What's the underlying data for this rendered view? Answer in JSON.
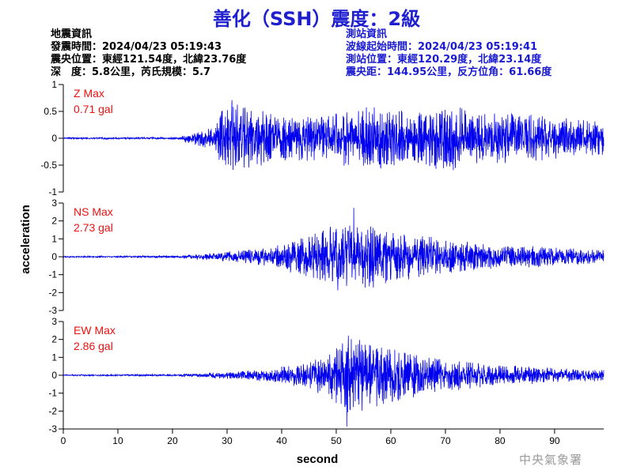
{
  "title": "善化（SSH）震度：2級",
  "quake_info": {
    "heading": "地震資訊",
    "time": "發震時間：2024/04/23 05:19:43",
    "epicenter": "震央位置：東經121.54度，北緯23.76度",
    "depth_magnitude": "深　度：5.8公里，芮氏規模：5.7"
  },
  "station_info": {
    "heading": "測站資訊",
    "wave_start": "波線起始時間：2024/04/23 05:19:41",
    "location": "測站位置：東經120.29度，北緯23.14度",
    "distance": "震央距：144.95公里，反方位角：61.66度"
  },
  "watermark": "中央氣象署",
  "colors": {
    "trace": "#0000ee",
    "label": "#ee1111",
    "title": "#1f1fd0",
    "station": "#1a1ad0"
  },
  "chart_data": {
    "type": "line",
    "xlabel": "second",
    "ylabel": "acceleration",
    "xlim": [
      0,
      99
    ],
    "xticks": [
      0,
      10,
      20,
      30,
      40,
      50,
      60,
      70,
      80,
      90
    ],
    "grid": false,
    "panels": [
      {
        "component": "Z",
        "label": "Z Max",
        "max_text": "0.71 gal",
        "max_value": 0.71,
        "ylim": [
          -1,
          1
        ],
        "yticks": [
          1,
          0.5,
          0,
          -0.5,
          -1
        ],
        "envelope": [
          [
            0,
            0.012
          ],
          [
            21,
            0.015
          ],
          [
            22.5,
            0.06
          ],
          [
            25,
            0.12
          ],
          [
            28,
            0.18
          ],
          [
            29,
            0.42
          ],
          [
            31,
            0.5
          ],
          [
            34,
            0.45
          ],
          [
            38,
            0.38
          ],
          [
            42,
            0.32
          ],
          [
            48,
            0.36
          ],
          [
            53,
            0.42
          ],
          [
            56,
            0.48
          ],
          [
            60,
            0.45
          ],
          [
            64,
            0.38
          ],
          [
            67,
            0.42
          ],
          [
            70,
            0.52
          ],
          [
            72,
            0.5
          ],
          [
            74,
            0.42
          ],
          [
            78,
            0.36
          ],
          [
            82,
            0.38
          ],
          [
            86,
            0.35
          ],
          [
            90,
            0.3
          ],
          [
            95,
            0.28
          ],
          [
            99,
            0.26
          ]
        ]
      },
      {
        "component": "NS",
        "label": "NS Max",
        "max_text": "2.73 gal",
        "max_value": 2.73,
        "ylim": [
          -3,
          3
        ],
        "yticks": [
          3,
          2,
          1,
          0,
          -1,
          -2,
          -3
        ],
        "envelope": [
          [
            0,
            0.03
          ],
          [
            20,
            0.04
          ],
          [
            24,
            0.1
          ],
          [
            28,
            0.18
          ],
          [
            32,
            0.28
          ],
          [
            36,
            0.38
          ],
          [
            40,
            0.55
          ],
          [
            44,
            0.9
          ],
          [
            47,
            1.15
          ],
          [
            50,
            1.45
          ],
          [
            52,
            1.85
          ],
          [
            54,
            1.55
          ],
          [
            57,
            1.35
          ],
          [
            60,
            1.2
          ],
          [
            63,
            1.0
          ],
          [
            67,
            0.9
          ],
          [
            70,
            0.8
          ],
          [
            74,
            0.65
          ],
          [
            78,
            0.55
          ],
          [
            82,
            0.5
          ],
          [
            86,
            0.46
          ],
          [
            90,
            0.4
          ],
          [
            95,
            0.34
          ],
          [
            99,
            0.3
          ]
        ]
      },
      {
        "component": "EW",
        "label": "EW Max",
        "max_text": "2.86 gal",
        "max_value": 2.86,
        "ylim": [
          -3,
          3
        ],
        "yticks": [
          3,
          2,
          1,
          0,
          -1,
          -2,
          -3
        ],
        "envelope": [
          [
            0,
            0.03
          ],
          [
            20,
            0.04
          ],
          [
            24,
            0.08
          ],
          [
            28,
            0.14
          ],
          [
            33,
            0.2
          ],
          [
            37,
            0.3
          ],
          [
            41,
            0.42
          ],
          [
            44,
            0.6
          ],
          [
            47,
            0.85
          ],
          [
            50,
            1.3
          ],
          [
            52,
            1.9
          ],
          [
            54,
            1.6
          ],
          [
            57,
            1.45
          ],
          [
            60,
            1.25
          ],
          [
            63,
            1.0
          ],
          [
            67,
            0.85
          ],
          [
            70,
            0.7
          ],
          [
            74,
            0.6
          ],
          [
            78,
            0.5
          ],
          [
            82,
            0.42
          ],
          [
            86,
            0.38
          ],
          [
            90,
            0.33
          ],
          [
            95,
            0.28
          ],
          [
            99,
            0.26
          ]
        ]
      }
    ]
  }
}
